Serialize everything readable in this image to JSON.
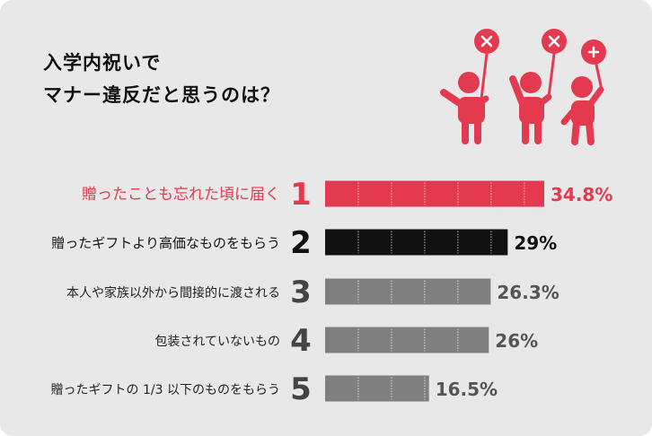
{
  "title": {
    "line1": "入学内祝いで",
    "line2": "マナー違反だと思うのは？"
  },
  "colors": {
    "background": "#e8e8e8",
    "accent": "#e33a4f",
    "rank2": "#111111",
    "rank_other": "#7f7f7f",
    "text": "#222222"
  },
  "illustration": {
    "description_icon": "three-people-holding-x-signs-icon"
  },
  "chart_data": {
    "type": "bar",
    "orientation": "horizontal",
    "categories": [
      "贈ったことも忘れた頃に届く",
      "贈ったギフトより高価なものをもらう",
      "本人や家族以外から間接的に渡される",
      "包装されていないもの",
      "贈ったギフトの 1/3 以下のものをもらう"
    ],
    "ranks": [
      "1",
      "2",
      "3",
      "4",
      "5"
    ],
    "values": [
      34.8,
      29,
      26.3,
      26,
      16.5
    ],
    "value_labels": [
      "34.8%",
      "29%",
      "26.3%",
      "26%",
      "16.5%"
    ],
    "unit": "%",
    "xlim": [
      0,
      35
    ],
    "grid": false,
    "legend": "none"
  }
}
